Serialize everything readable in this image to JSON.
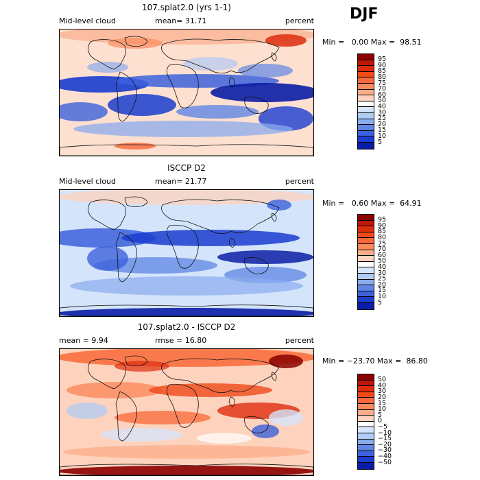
{
  "season": "DJF",
  "panels": [
    {
      "title": "107.splat2.0 (yrs 1-1)",
      "left_text": "Mid-level cloud",
      "mid_text": "mean=  31.71",
      "right_text": "percent",
      "minmax": "Min =   0.00 Max =  98.51",
      "map_type": "model",
      "colorbar": {
        "labels": [
          "95",
          "90",
          "85",
          "80",
          "75",
          "70",
          "60",
          "50",
          "40",
          "30",
          "25",
          "20",
          "15",
          "10",
          "5"
        ],
        "colors": [
          "#8b0000",
          "#c0160a",
          "#de2d0d",
          "#ef4a1a",
          "#f8683a",
          "#fb8a5c",
          "#fcae8a",
          "#fdd3bd",
          "#ffffff",
          "#d4e4fb",
          "#b0cbf4",
          "#8aabee",
          "#5f86e4",
          "#3c62db",
          "#1a3dcf",
          "#0a1ea5"
        ]
      }
    },
    {
      "title": "ISCCP D2",
      "left_text": "Mid-level cloud",
      "mid_text": "mean=  21.77",
      "right_text": "percent",
      "minmax": "Min =   0.60 Max =  64.91",
      "map_type": "obs",
      "colorbar": {
        "labels": [
          "95",
          "90",
          "85",
          "80",
          "75",
          "70",
          "60",
          "50",
          "40",
          "30",
          "25",
          "20",
          "15",
          "10",
          "5"
        ],
        "colors": [
          "#8b0000",
          "#c0160a",
          "#de2d0d",
          "#ef4a1a",
          "#f8683a",
          "#fb8a5c",
          "#fcae8a",
          "#fdd3bd",
          "#ffffff",
          "#d4e4fb",
          "#b0cbf4",
          "#8aabee",
          "#5f86e4",
          "#3c62db",
          "#1a3dcf",
          "#0a1ea5"
        ]
      }
    },
    {
      "title": "107.splat2.0 - ISCCP D2",
      "left_text": "mean =    9.94",
      "mid_text": "rmse =  16.80",
      "right_text": "percent",
      "minmax": "Min = −23.70 Max =  86.80",
      "map_type": "diff",
      "colorbar": {
        "labels": [
          "50",
          "40",
          "30",
          "20",
          "15",
          "10",
          "5",
          "0",
          "−5",
          "−10",
          "−15",
          "−20",
          "−30",
          "−40",
          "−50"
        ],
        "colors": [
          "#8b0000",
          "#c0160a",
          "#de2d0d",
          "#ef4a1a",
          "#f8683a",
          "#fb8a5c",
          "#fcae8a",
          "#fdd3bd",
          "#ffffff",
          "#d4e4fb",
          "#b0cbf4",
          "#8aabee",
          "#5f86e4",
          "#3c62db",
          "#1a3dcf",
          "#0a1ea5"
        ]
      }
    }
  ]
}
